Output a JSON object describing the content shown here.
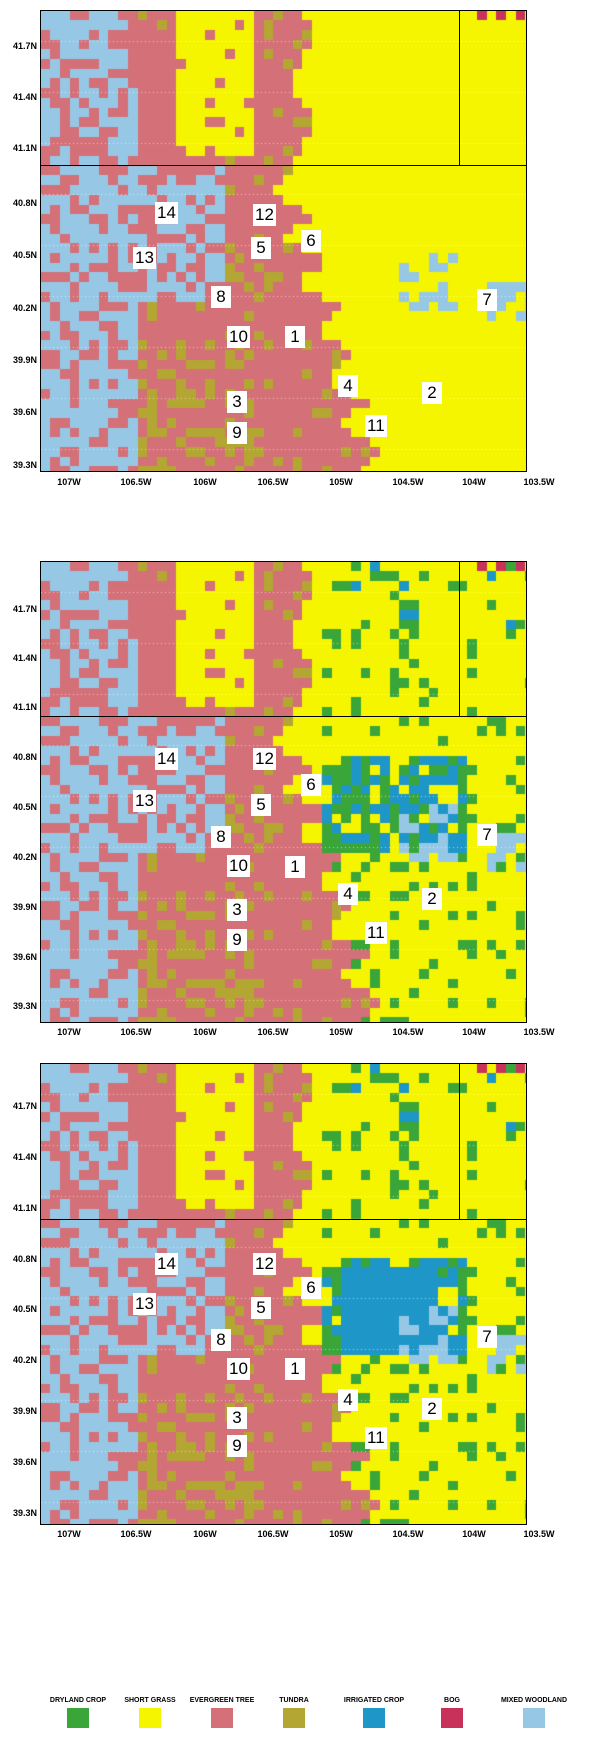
{
  "lat_labels": [
    "41.7N",
    "41.4N",
    "41.1N",
    "40.8N",
    "40.5N",
    "40.2N",
    "39.9N",
    "39.6N",
    "39.3N"
  ],
  "lon_labels": [
    "107W",
    "106.5W",
    "106W",
    "106.5W",
    "105W",
    "104.5W",
    "104W",
    "103.5W"
  ],
  "site_labels": [
    "14",
    "12",
    "6",
    "13",
    "5",
    "8",
    "7",
    "10",
    "1",
    "4",
    "2",
    "3",
    "11",
    "9"
  ],
  "legend": [
    {
      "label": "DRYLAND CROP",
      "color": "#3aa63a"
    },
    {
      "label": "SHORT GRASS",
      "color": "#f5f500"
    },
    {
      "label": "EVERGREEN TREE",
      "color": "#d47078"
    },
    {
      "label": "TUNDRA",
      "color": "#b4a632"
    },
    {
      "label": "IRRIGATED CROP",
      "color": "#1e96c8"
    },
    {
      "label": "BOG",
      "color": "#c8325a"
    },
    {
      "label": "MIXED WOODLAND",
      "color": "#96c8e6"
    }
  ],
  "panels": [
    {
      "name": "panel-1",
      "variant": "natural"
    },
    {
      "name": "panel-2",
      "variant": "current"
    },
    {
      "name": "panel-3",
      "variant": "irrigated-block"
    }
  ]
}
